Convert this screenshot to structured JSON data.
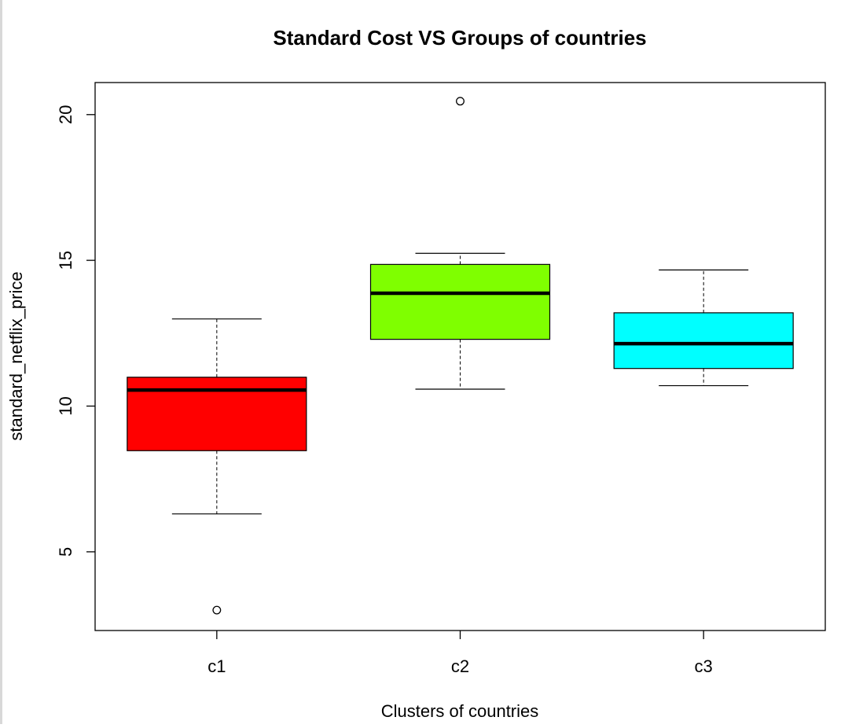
{
  "chart_data": {
    "type": "box",
    "title": "Standard Cost VS Groups of countries",
    "xlabel": "Clusters of countries",
    "ylabel": "standard_netflix_price",
    "ylim": [
      2.3,
      21.1
    ],
    "yticks": [
      5,
      10,
      15,
      20
    ],
    "categories": [
      "c1",
      "c2",
      "c3"
    ],
    "boxes": [
      {
        "category": "c1",
        "color": "#ff0000",
        "whisker_low": 6.3,
        "q1": 8.47,
        "median": 10.55,
        "q3": 10.99,
        "whisker_high": 12.99,
        "outliers": [
          3.0
        ]
      },
      {
        "category": "c2",
        "color": "#7fff00",
        "whisker_low": 10.58,
        "q1": 12.29,
        "median": 13.87,
        "q3": 14.86,
        "whisker_high": 15.24,
        "outliers": [
          20.46
        ]
      },
      {
        "category": "c3",
        "color": "#00ffff",
        "whisker_low": 10.7,
        "q1": 11.29,
        "median": 12.14,
        "q3": 13.2,
        "whisker_high": 14.67,
        "outliers": []
      }
    ],
    "grid": false,
    "legend": "none"
  }
}
